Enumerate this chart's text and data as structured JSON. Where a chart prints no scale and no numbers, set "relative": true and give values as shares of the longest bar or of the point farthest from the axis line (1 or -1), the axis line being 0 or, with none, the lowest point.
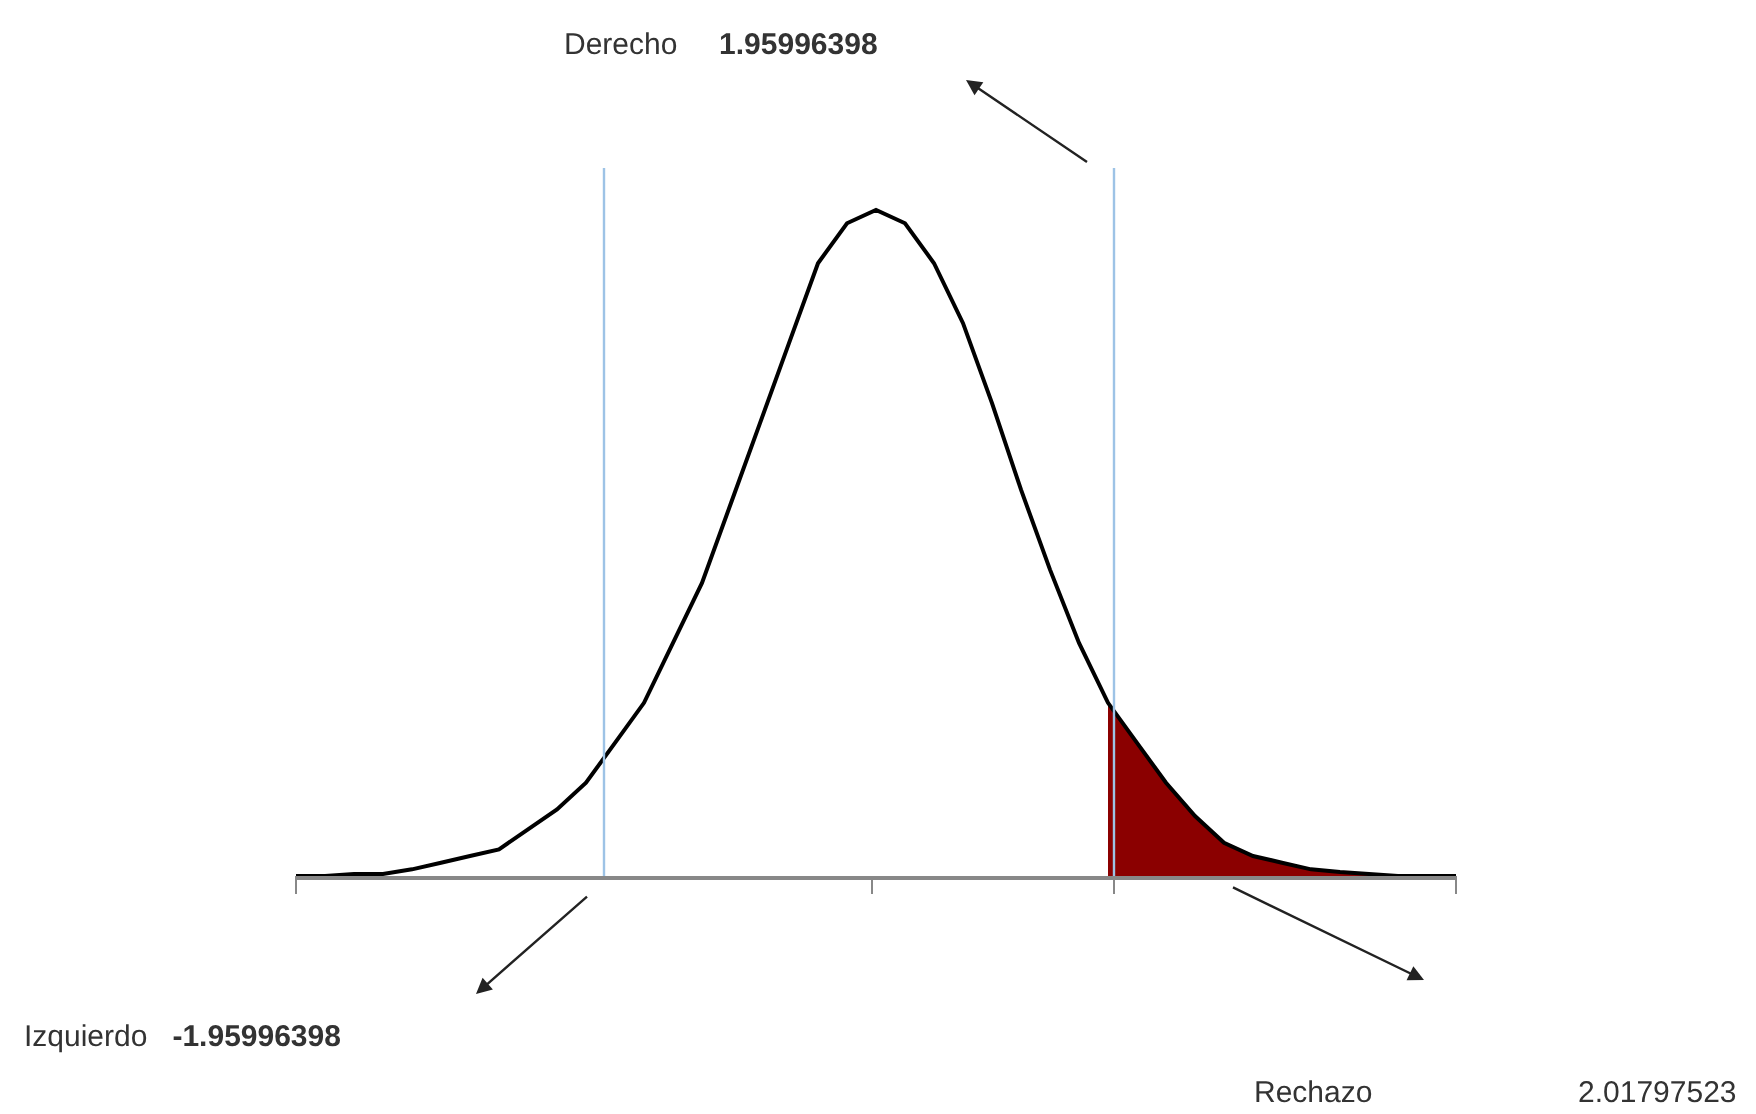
{
  "chart_data": {
    "type": "line",
    "relative": true,
    "categories": [
      null,
      null,
      null,
      null,
      null,
      null,
      null,
      null,
      null,
      null,
      null,
      null,
      null,
      null,
      null,
      null,
      null,
      null,
      null,
      null,
      null,
      null,
      null,
      null,
      null,
      null,
      null,
      null,
      null,
      null,
      null,
      null,
      null,
      null,
      null,
      null,
      null,
      null,
      null,
      null,
      null
    ],
    "marker": "none",
    "line_style": "solid",
    "series": [
      {
        "color": "#000000",
        "values": [
          0,
          0,
          0.003,
          0.003,
          0.01,
          0.02,
          0.03,
          0.04,
          0.07,
          0.1,
          0.14,
          0.2,
          0.26,
          0.35,
          0.44,
          0.56,
          0.68,
          0.8,
          0.92,
          0.98,
          1,
          0.98,
          0.92,
          0.83,
          0.71,
          0.58,
          0.46,
          0.35,
          0.26,
          0.2,
          0.14,
          0.09,
          0.05,
          0.03,
          0.02,
          0.01,
          0.006,
          0.003,
          0,
          0,
          0
        ]
      },
      {
        "type": "area",
        "color": "#8b0000",
        "values": [
          null,
          null,
          null,
          null,
          null,
          null,
          null,
          null,
          null,
          null,
          null,
          null,
          null,
          null,
          null,
          null,
          null,
          null,
          null,
          null,
          null,
          null,
          null,
          null,
          null,
          null,
          null,
          null,
          0.26,
          0.2,
          0.14,
          0.09,
          0.05,
          0.03,
          0.02,
          0.01,
          0.006,
          0.003,
          0,
          0,
          0
        ]
      }
    ],
    "annotations": [
      "Derecho 1.95996398",
      "Izquierdo -1.95996398",
      "Rechazo 2.01797523"
    ]
  }
}
